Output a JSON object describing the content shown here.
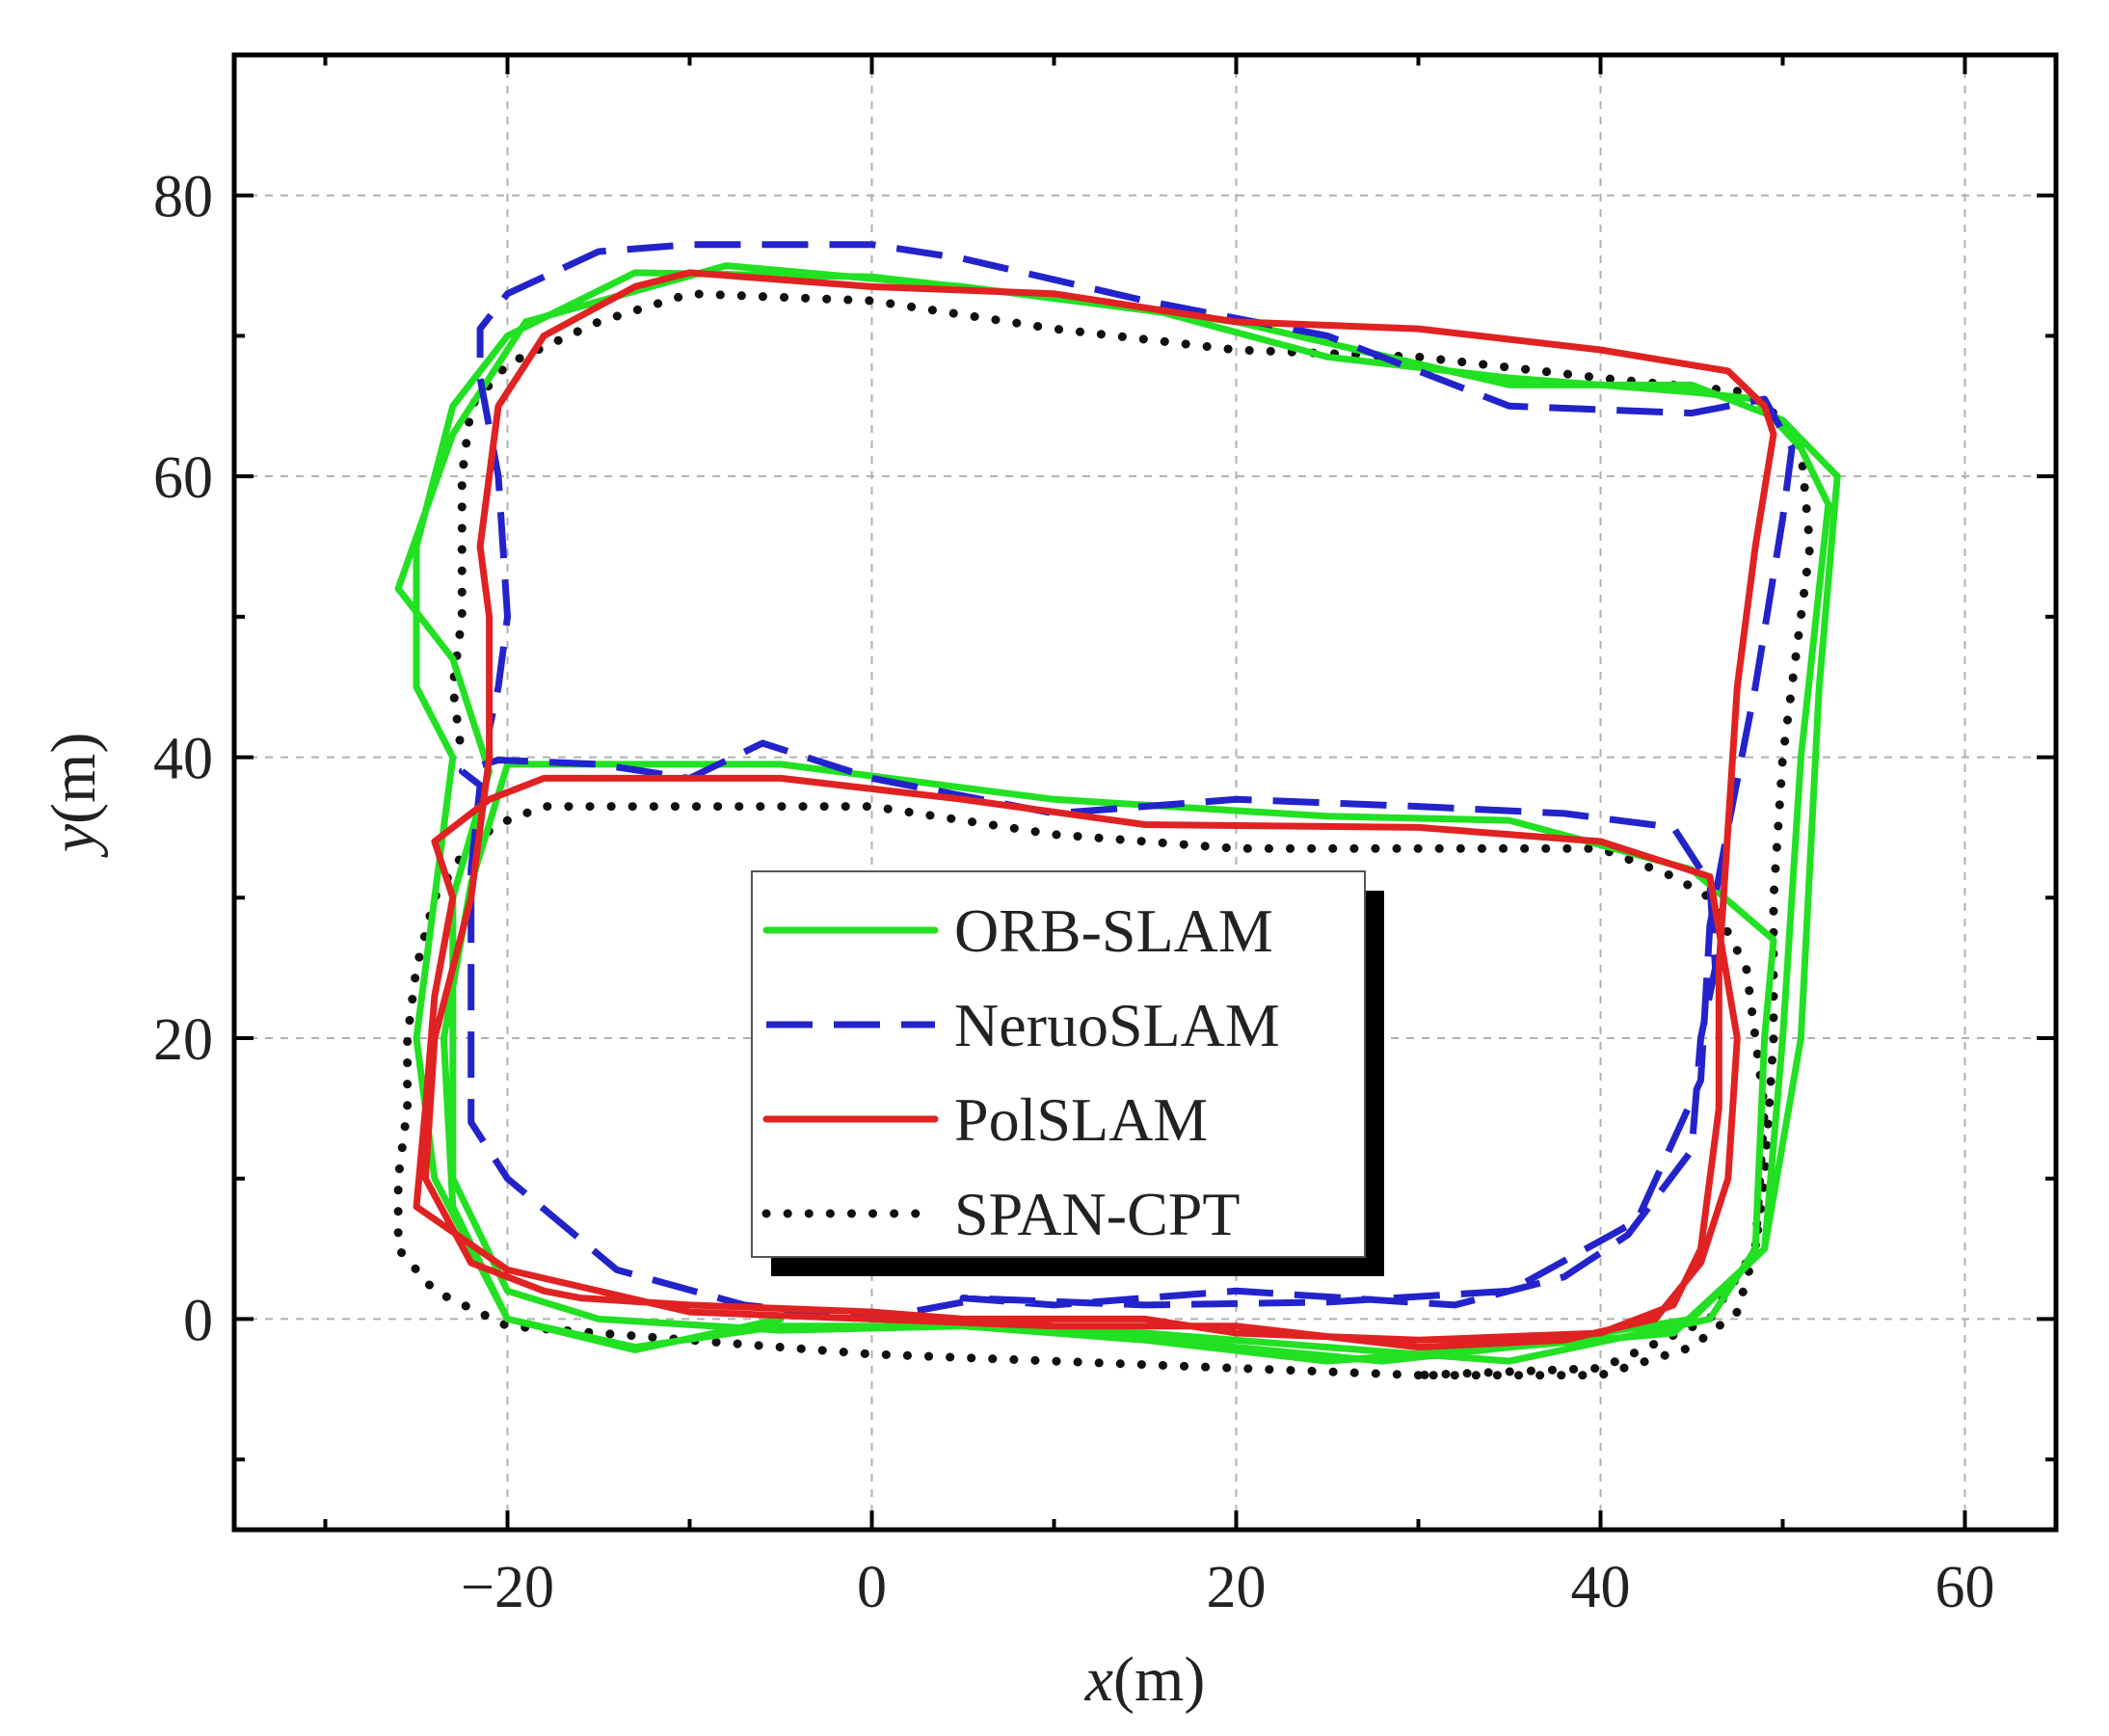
{
  "chart_data": {
    "type": "line",
    "title": "",
    "xlabel": "x(m)",
    "ylabel": "y(m)",
    "xlabel_var": "x",
    "xlabel_unit": "(m)",
    "ylabel_var": "y",
    "ylabel_unit": "(m)",
    "xlim": [
      -35,
      65
    ],
    "ylim": [
      -15,
      90
    ],
    "x_ticks": [
      -20,
      0,
      20,
      40,
      60
    ],
    "y_ticks": [
      0,
      20,
      40,
      60,
      80
    ],
    "x_tick_labels": [
      "−20",
      "0",
      "20",
      "40",
      "60"
    ],
    "y_tick_labels": [
      "0",
      "20",
      "40",
      "60",
      "80"
    ],
    "grid": true,
    "legend_position": "center",
    "series": [
      {
        "name": "ORB-SLAM",
        "color": "#22e022",
        "style": "solid",
        "points": [
          [
            -5,
            0
          ],
          [
            -13,
            -2.2
          ],
          [
            -20,
            0
          ],
          [
            -23,
            8
          ],
          [
            -23.5,
            20
          ],
          [
            -22,
            31
          ],
          [
            -20,
            39.5
          ],
          [
            -5,
            39.5
          ],
          [
            10,
            37
          ],
          [
            25,
            35.8
          ],
          [
            35,
            35.5
          ],
          [
            45,
            32
          ],
          [
            49.5,
            27
          ],
          [
            49,
            20
          ],
          [
            48.5,
            5
          ],
          [
            46,
            0
          ],
          [
            35,
            -3
          ],
          [
            25,
            -2
          ],
          [
            15,
            -1
          ],
          [
            5,
            -0.5
          ],
          [
            -5,
            -0.5
          ],
          [
            -13,
            -2
          ],
          [
            -20,
            0
          ],
          [
            -24,
            10
          ],
          [
            -25,
            20
          ],
          [
            -24,
            30
          ],
          [
            -23,
            40
          ],
          [
            -25,
            45
          ],
          [
            -25,
            55
          ],
          [
            -23,
            65
          ],
          [
            -20,
            70
          ],
          [
            -13,
            74.5
          ],
          [
            0,
            74.2
          ],
          [
            15,
            72
          ],
          [
            25,
            68.5
          ],
          [
            35,
            67
          ],
          [
            45,
            66
          ],
          [
            48.5,
            65.5
          ],
          [
            51,
            62
          ],
          [
            52.5,
            58
          ],
          [
            51,
            40
          ],
          [
            50,
            20
          ],
          [
            49,
            5
          ],
          [
            44,
            -1
          ],
          [
            35,
            -2
          ],
          [
            25,
            -3
          ],
          [
            15,
            -1.5
          ],
          [
            5,
            -0.5
          ],
          [
            -5,
            -0.8
          ],
          [
            -15,
            0
          ],
          [
            -20,
            2
          ],
          [
            -23,
            10
          ],
          [
            -23,
            30
          ],
          [
            -21,
            39
          ],
          [
            -23,
            47
          ],
          [
            -26,
            52
          ],
          [
            -23,
            63
          ],
          [
            -19,
            71
          ],
          [
            -8,
            75
          ],
          [
            5,
            73.5
          ],
          [
            20,
            71
          ],
          [
            35,
            66.5
          ],
          [
            45,
            66.5
          ],
          [
            50,
            64
          ],
          [
            53,
            60
          ],
          [
            52,
            45
          ],
          [
            51,
            20
          ],
          [
            49,
            5
          ],
          [
            45,
            0
          ],
          [
            35,
            -2
          ],
          [
            28,
            -3
          ],
          [
            20,
            -2
          ],
          [
            10,
            -0.5
          ],
          [
            0,
            -0.5
          ]
        ]
      },
      {
        "name": "NeruoSLAM",
        "color": "#2323cc",
        "style": "dashed",
        "points": [
          [
            5,
            1.2
          ],
          [
            0,
            0
          ],
          [
            -7,
            1
          ],
          [
            -14,
            3.5
          ],
          [
            -20,
            10
          ],
          [
            -22,
            14
          ],
          [
            -22,
            25
          ],
          [
            -22,
            32
          ],
          [
            -21.5,
            38
          ],
          [
            -22.5,
            39
          ],
          [
            -20.5,
            39.8
          ],
          [
            -15,
            39.5
          ],
          [
            -10,
            38.5
          ],
          [
            -6,
            41
          ],
          [
            0,
            38.5
          ],
          [
            10,
            36
          ],
          [
            20,
            37
          ],
          [
            30,
            36.5
          ],
          [
            38,
            36
          ],
          [
            44,
            35
          ],
          [
            46,
            31
          ],
          [
            46.3,
            25
          ],
          [
            45.5,
            20
          ],
          [
            45,
            12
          ],
          [
            41.5,
            6
          ],
          [
            38,
            3
          ],
          [
            32,
            1
          ],
          [
            20,
            2
          ],
          [
            10,
            1
          ],
          [
            5,
            1.5
          ],
          [
            15,
            1
          ],
          [
            25,
            1.2
          ],
          [
            35,
            2
          ],
          [
            42,
            7
          ],
          [
            45.5,
            17
          ],
          [
            46,
            28
          ],
          [
            47,
            35
          ],
          [
            48.5,
            45
          ],
          [
            50,
            57
          ],
          [
            50.5,
            62
          ],
          [
            49,
            65.5
          ],
          [
            45,
            64.5
          ],
          [
            35,
            65
          ],
          [
            25,
            70
          ],
          [
            15,
            72.5
          ],
          [
            5,
            75.5
          ],
          [
            0,
            76.5
          ],
          [
            -10,
            76.5
          ],
          [
            -15,
            76
          ],
          [
            -20,
            73
          ],
          [
            -21.5,
            70.5
          ],
          [
            -21.5,
            67
          ],
          [
            -20.5,
            60
          ],
          [
            -20,
            50
          ],
          [
            -20.5,
            45
          ],
          [
            -21,
            42
          ]
        ]
      },
      {
        "name": "PolSLAM",
        "color": "#e02222",
        "style": "solid",
        "points": [
          [
            20,
            -0.5
          ],
          [
            10,
            -0.5
          ],
          [
            0,
            0
          ],
          [
            -10,
            0.5
          ],
          [
            -20,
            3.5
          ],
          [
            -25,
            8
          ],
          [
            -24.5,
            15
          ],
          [
            -24,
            23
          ],
          [
            -23,
            30
          ],
          [
            -24,
            34
          ],
          [
            -21,
            37
          ],
          [
            -18,
            38.5
          ],
          [
            -5,
            38.5
          ],
          [
            5,
            37
          ],
          [
            15,
            35.2
          ],
          [
            30,
            35
          ],
          [
            40,
            34
          ],
          [
            46,
            31.5
          ],
          [
            47.5,
            20
          ],
          [
            47,
            10
          ],
          [
            45.5,
            4
          ],
          [
            43,
            0
          ],
          [
            38,
            -1.5
          ],
          [
            30,
            -2
          ],
          [
            20,
            -0.5
          ],
          [
            10,
            -0.5
          ],
          [
            0,
            0.5
          ],
          [
            -10,
            1
          ],
          [
            -16,
            1.5
          ],
          [
            -18,
            2
          ],
          [
            -22,
            4
          ],
          [
            -24.5,
            10
          ],
          [
            -24,
            20
          ],
          [
            -22,
            30
          ],
          [
            -21,
            40
          ],
          [
            -21,
            50
          ],
          [
            -21.5,
            55
          ],
          [
            -20.5,
            65
          ],
          [
            -18,
            70
          ],
          [
            -13,
            73.5
          ],
          [
            -10,
            74.5
          ],
          [
            0,
            73.5
          ],
          [
            10,
            73
          ],
          [
            20,
            71
          ],
          [
            30,
            70.5
          ],
          [
            40,
            69
          ],
          [
            47,
            67.5
          ],
          [
            49,
            65
          ],
          [
            49.5,
            63
          ],
          [
            48.5,
            55
          ],
          [
            47.5,
            45
          ],
          [
            47,
            35
          ],
          [
            46.5,
            25
          ],
          [
            46.5,
            15
          ],
          [
            45.5,
            5
          ],
          [
            44,
            1
          ],
          [
            40,
            -1
          ],
          [
            30,
            -1.5
          ],
          [
            20,
            -1
          ],
          [
            15,
            0
          ],
          [
            5,
            0
          ]
        ]
      },
      {
        "name": "SPAN-CPT",
        "color": "#111111",
        "style": "dotted",
        "points": [
          [
            30,
            -4
          ],
          [
            20,
            -3.5
          ],
          [
            10,
            -3
          ],
          [
            0,
            -2.5
          ],
          [
            -10,
            -1.5
          ],
          [
            -20,
            -0.5
          ],
          [
            -24,
            2
          ],
          [
            -26,
            5
          ],
          [
            -26,
            10
          ],
          [
            -25.5,
            15
          ],
          [
            -25.5,
            20
          ],
          [
            -25,
            25
          ],
          [
            -24,
            30
          ],
          [
            -22,
            34
          ],
          [
            -20,
            35.5
          ],
          [
            -18,
            36.5
          ],
          [
            -10,
            36.5
          ],
          [
            0,
            36.5
          ],
          [
            10,
            34.5
          ],
          [
            20,
            33.5
          ],
          [
            30,
            33.5
          ],
          [
            40,
            33.5
          ],
          [
            44,
            31.5
          ],
          [
            46,
            30
          ],
          [
            48,
            25
          ],
          [
            49,
            15
          ],
          [
            48.5,
            5
          ],
          [
            46,
            0
          ],
          [
            40,
            -3.5
          ],
          [
            30,
            -4
          ],
          [
            40,
            -4
          ],
          [
            45,
            -2
          ],
          [
            47.5,
            0.5
          ],
          [
            48.5,
            5
          ],
          [
            49,
            10
          ],
          [
            49.5,
            20
          ],
          [
            49.5,
            30
          ],
          [
            50,
            40
          ],
          [
            51,
            50
          ],
          [
            51.5,
            55
          ],
          [
            51,
            62
          ],
          [
            50,
            64
          ],
          [
            48,
            66
          ],
          [
            40,
            67
          ],
          [
            30,
            68.5
          ],
          [
            20,
            69
          ],
          [
            10,
            70.5
          ],
          [
            0,
            72.5
          ],
          [
            -10,
            73
          ],
          [
            -15,
            71
          ],
          [
            -20,
            68
          ],
          [
            -22,
            65
          ],
          [
            -22.5,
            60
          ],
          [
            -22.5,
            55
          ],
          [
            -22.5,
            50
          ],
          [
            -23,
            45
          ],
          [
            -22.5,
            40
          ]
        ]
      }
    ]
  }
}
